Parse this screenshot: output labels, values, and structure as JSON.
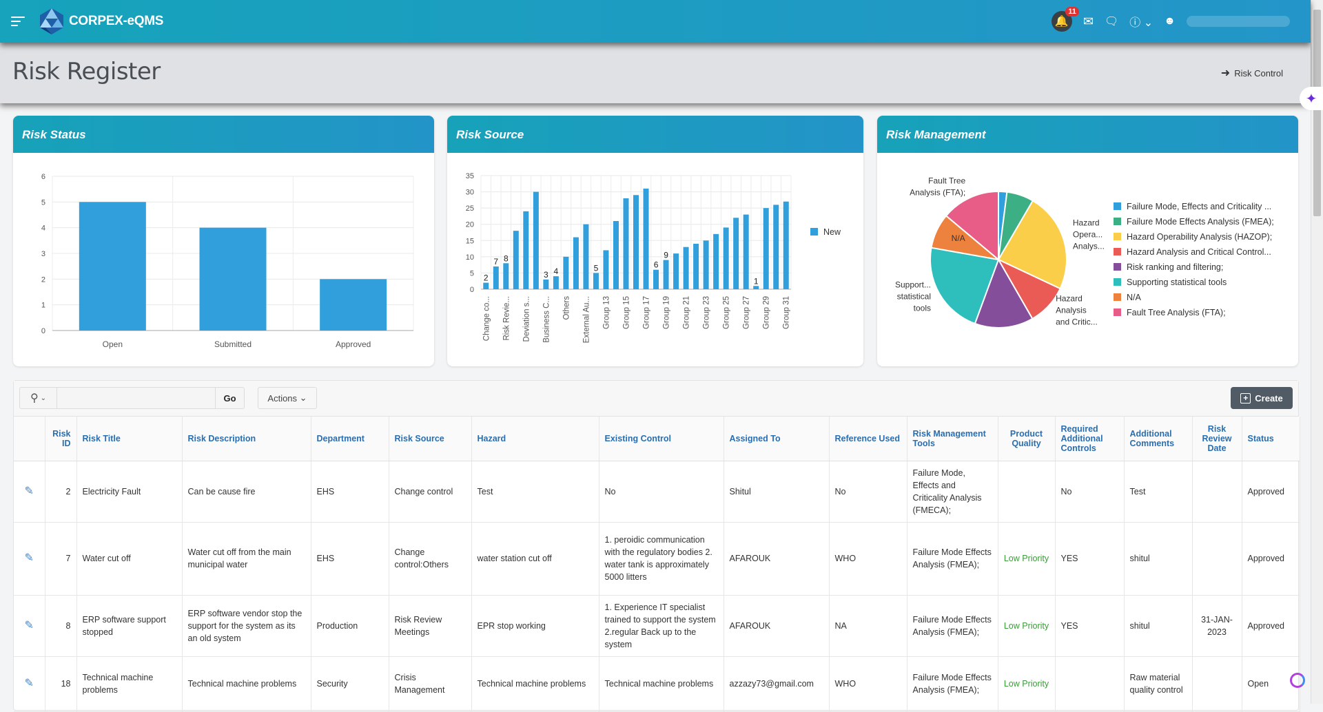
{
  "app": {
    "brand": "CORPEX-eQMS",
    "notification_count": "11"
  },
  "page": {
    "title": "Risk Register",
    "risk_control_link": "Risk Control"
  },
  "cards": {
    "status_title": "Risk Status",
    "source_title": "Risk Source",
    "mgmt_title": "Risk Management"
  },
  "chart_data": [
    {
      "type": "bar",
      "title": "Risk Status",
      "categories": [
        "Open",
        "Submitted",
        "Approved"
      ],
      "values": [
        5,
        4,
        2
      ],
      "ylim": [
        0,
        6
      ],
      "yticks": [
        0,
        1,
        2,
        3,
        4,
        5,
        6
      ],
      "color": "#309fdb",
      "grid": true
    },
    {
      "type": "bar",
      "title": "Risk Source",
      "categories": [
        "Change co...",
        "",
        "Risk Revie...",
        "",
        "Deviation s...",
        "",
        "Business C...",
        "",
        "Others",
        "",
        "External Au...",
        "",
        "Group 13",
        "",
        "Group 15",
        "",
        "Group 17",
        "",
        "Group 19",
        "",
        "Group 21",
        "",
        "Group 23",
        "",
        "Group 25",
        "",
        "Group 27",
        "",
        "Group 29",
        "",
        "Group 31"
      ],
      "series": [
        {
          "name": "New",
          "values": [
            2,
            7,
            8,
            18,
            24,
            30,
            3,
            4,
            10,
            16,
            20,
            5,
            12,
            21,
            28,
            29,
            31,
            6,
            9,
            11,
            13,
            14,
            15,
            17,
            19,
            22,
            23,
            1,
            25,
            26,
            27
          ]
        }
      ],
      "ylim": [
        0,
        35
      ],
      "yticks": [
        0,
        5,
        10,
        15,
        20,
        25,
        30,
        35
      ],
      "legend": "right",
      "color": "#309fdb",
      "grid": true
    },
    {
      "type": "pie",
      "title": "Risk Management",
      "legend": "right",
      "slices": [
        {
          "label": "Failure Mode, Effects and Criticality ...",
          "value": 2,
          "color": "#309fdb",
          "outside_label": ""
        },
        {
          "label": "Failure Mode Effects Analysis (FMEA);",
          "value": 6.4,
          "color": "#3caf85",
          "outside_label": ""
        },
        {
          "label": "Hazard Operability Analysis (HAZOP);",
          "value": 23.6,
          "color": "#fbce4a",
          "outside_label": "Hazard|Opera...|Analys..."
        },
        {
          "label": "Hazard Analysis and Critical Control...",
          "value": 9.7,
          "color": "#e95b54",
          "outside_label": "Hazard|Analysis|and Critic..."
        },
        {
          "label": "Risk ranking and filtering;",
          "value": 13.9,
          "color": "#854e9b",
          "outside_label": ""
        },
        {
          "label": "Supporting statistical tools",
          "value": 22.2,
          "color": "#2ebfbc",
          "outside_label": "Support...|statistical|tools"
        },
        {
          "label": "N/A",
          "value": 8.3,
          "color": "#ed813e",
          "outside_label": "N/A"
        },
        {
          "label": "Fault Tree Analysis (FTA);",
          "value": 13.9,
          "color": "#e85d88",
          "outside_label": "Fault Tree|Analysis (FTA);"
        }
      ]
    }
  ],
  "toolbar": {
    "go": "Go",
    "actions": "Actions",
    "create": "Create",
    "search_value": ""
  },
  "table": {
    "headers": [
      "",
      "Risk ID",
      "Risk Title",
      "Risk Description",
      "Department",
      "Risk Source",
      "Hazard",
      "Existing Control",
      "Assigned To",
      "Reference Used",
      "Risk Management Tools",
      "Product Quality",
      "Required Additional Controls",
      "Additional Comments",
      "Risk Review Date",
      "Status"
    ],
    "rows": [
      [
        "",
        "2",
        "Electricity Fault",
        "Can be cause fire",
        "EHS",
        "Change control",
        "Test",
        "No",
        "Shitul",
        "No",
        "Failure Mode, Effects and Criticality Analysis (FMECA);",
        "",
        "No",
        "Test",
        "",
        "Approved"
      ],
      [
        "",
        "7",
        "Water cut off",
        "Water cut off from the main municipal water",
        "EHS",
        "Change control:Others",
        "water station cut off",
        "1. peroidic communication with the regulatory bodies 2. water tank is approximately 5000 litters",
        "AFAROUK",
        "WHO",
        "Failure Mode Effects Analysis (FMEA);",
        "Low Priority",
        "YES",
        "shitul",
        "",
        "Approved"
      ],
      [
        "",
        "8",
        "ERP software support stopped",
        "ERP software vendor stop the support for the system as its an old system",
        "Production",
        "Risk Review Meetings",
        "EPR stop working",
        "1. Experience IT specialist trained to support the system 2.regular Back up to the system",
        "AFAROUK",
        "NA",
        "Failure Mode Effects Analysis (FMEA);",
        "Low Priority",
        "YES",
        "shitul",
        "31-JAN-2023",
        "Approved"
      ],
      [
        "",
        "18",
        "Technical machine problems",
        "Technical machine problems",
        "Security",
        "Crisis Management",
        "Technical machine problems",
        "Technical machine problems",
        "azzazy73@gmail.com",
        "WHO",
        "Failure Mode Effects Analysis (FMEA);",
        "Low Priority",
        "",
        "Raw material quality control",
        "",
        "Open"
      ]
    ]
  }
}
